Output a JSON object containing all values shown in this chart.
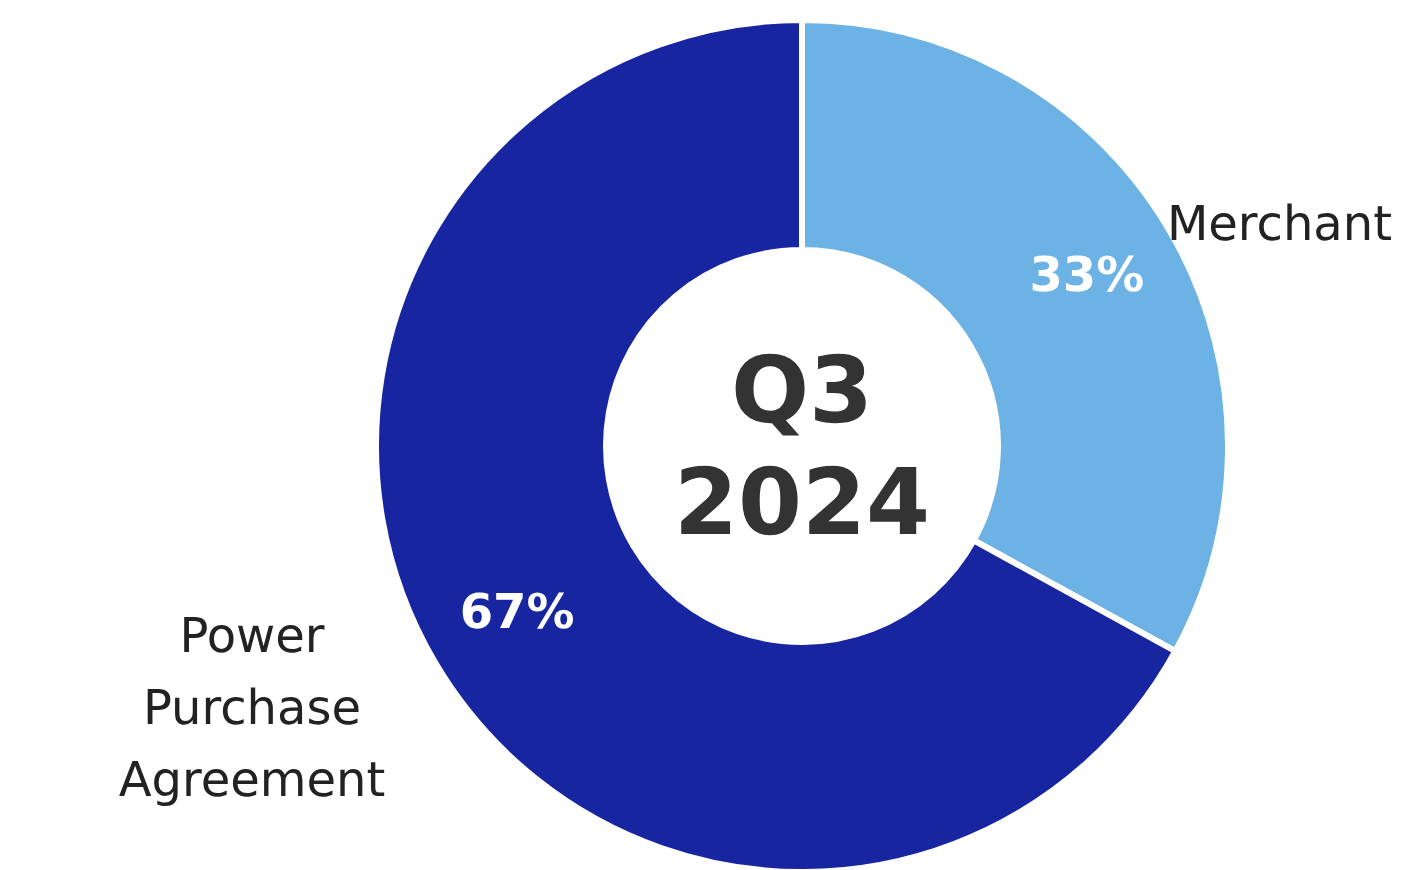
{
  "chart_data": {
    "type": "donut",
    "title": "Q3 2024",
    "categories": [
      "Merchant",
      "Power Purchase Agreement"
    ],
    "values": [
      33,
      67
    ],
    "colors": [
      "#6cb2e4",
      "#1726a0"
    ],
    "value_labels": [
      "33%",
      "67%"
    ]
  }
}
